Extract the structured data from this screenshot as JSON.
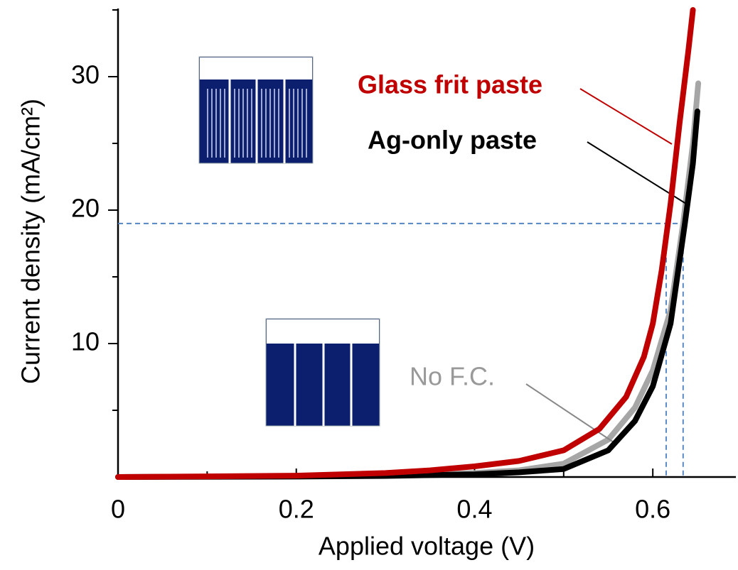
{
  "chart_data": {
    "type": "line",
    "x_label": "Applied voltage (V)",
    "y_label": "Current density (mA/cm²)",
    "xlim": [
      0,
      0.69
    ],
    "ylim": [
      0,
      35
    ],
    "xticks": [
      0,
      0.2,
      0.4,
      0.6
    ],
    "yticks": [
      10,
      20,
      30
    ],
    "xminorticks": [
      0.1,
      0.3,
      0.5
    ],
    "yminorticks": [
      5,
      15,
      25,
      35
    ],
    "hline": 19,
    "vlines": [
      0.615,
      0.634
    ],
    "series": [
      {
        "name": "No F.C.",
        "color": "#a6a6a6",
        "x": [
          0,
          0.2,
          0.3,
          0.4,
          0.45,
          0.5,
          0.55,
          0.58,
          0.6,
          0.62,
          0.634,
          0.645,
          0.651
        ],
        "values": [
          0,
          0.05,
          0.1,
          0.3,
          0.5,
          1.0,
          2.8,
          5.2,
          8.0,
          12.5,
          19,
          25,
          29.5
        ]
      },
      {
        "name": "Ag-only paste",
        "color": "#000000",
        "x": [
          0,
          0.2,
          0.3,
          0.4,
          0.45,
          0.5,
          0.55,
          0.58,
          0.6,
          0.62,
          0.636,
          0.645,
          0.65
        ],
        "values": [
          0,
          0.03,
          0.08,
          0.2,
          0.35,
          0.6,
          2.0,
          4.2,
          6.8,
          11.5,
          19,
          23.5,
          27.4
        ]
      },
      {
        "name": "Glass frit paste",
        "color": "#c00000",
        "x": [
          0,
          0.1,
          0.2,
          0.3,
          0.35,
          0.4,
          0.45,
          0.5,
          0.54,
          0.57,
          0.59,
          0.6,
          0.61,
          0.62,
          0.63,
          0.64,
          0.645
        ],
        "values": [
          0,
          0.05,
          0.1,
          0.3,
          0.5,
          0.8,
          1.2,
          2.0,
          3.6,
          6.0,
          9.0,
          11.5,
          15.5,
          20.5,
          26.5,
          32,
          35
        ]
      }
    ]
  }
}
